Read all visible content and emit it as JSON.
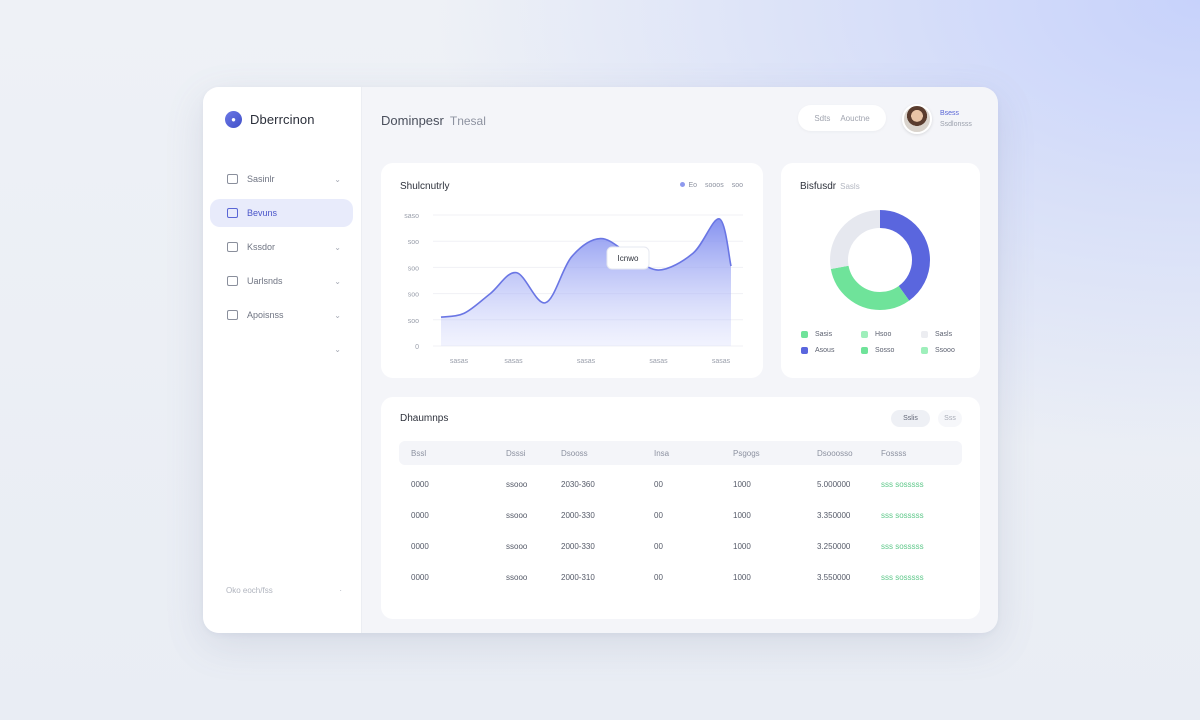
{
  "app": {
    "brand": "Dberrcinon"
  },
  "sidebar": {
    "items": [
      {
        "label": "Sasinlr",
        "icon": "chart-icon"
      },
      {
        "label": "Bevuns",
        "icon": "doc-icon"
      },
      {
        "label": "Kssdor",
        "icon": "file-icon"
      },
      {
        "label": "Uarlsnds",
        "icon": "folder-icon"
      },
      {
        "label": "Apoisnss",
        "icon": "settings-icon"
      }
    ],
    "footer": {
      "left": "Oko eoch/fss",
      "right": "·"
    }
  },
  "header": {
    "title": "Dominpesr",
    "subtitle": "Tnesal",
    "search_label": "Sdts",
    "search_hint": "Aouctne"
  },
  "user": {
    "name": "Bsess",
    "role": "Ssdlonsss"
  },
  "line_card": {
    "title": "Shulcnutrly",
    "legend": [
      "Eo",
      "sooos",
      "soo"
    ],
    "tooltip": "Icnwo"
  },
  "chart_data": {
    "type": "area",
    "x": [
      0,
      0.25,
      0.5,
      0.75,
      1
    ],
    "x_tick_labels": [
      "sasas",
      "sasas",
      "sasas",
      "sasas",
      "sasas"
    ],
    "y_tick_labels": [
      "saso",
      "soo",
      "soo",
      "soo",
      "soo",
      "0"
    ],
    "ylim": [
      0,
      100
    ],
    "series": [
      {
        "points_x": [
          0,
          0.08,
          0.17,
          0.26,
          0.36,
          0.45,
          0.55,
          0.65,
          0.75,
          0.87,
          0.96,
          1
        ],
        "points_y": [
          22,
          25,
          40,
          56,
          33,
          68,
          82,
          70,
          58,
          71,
          97,
          61
        ]
      }
    ],
    "color": "#8e99ee"
  },
  "donut_card": {
    "title": "Bisfusdr",
    "subtitle": "Sasls",
    "segments": [
      {
        "value": 40,
        "color": "#5a66de"
      },
      {
        "value": 32,
        "color": "#6fe39a"
      },
      {
        "value": 28,
        "color": "#e6e8ef"
      }
    ],
    "legend": [
      {
        "label": "Sasis",
        "color": "#6fe39a"
      },
      {
        "label": "Hsoo",
        "color": "#9eefbb"
      },
      {
        "label": "Sasls",
        "color": "#ecedf1"
      },
      {
        "label": "Asous",
        "color": "#5a66de"
      },
      {
        "label": "Sosso",
        "color": "#6fe39a"
      },
      {
        "label": "Ssooo",
        "color": "#9eefbb"
      }
    ]
  },
  "table": {
    "title": "Dhaumnps",
    "btn_primary": "Sslis",
    "btn_secondary": "Sss",
    "headers": [
      "Bssl",
      "Dsssi",
      "Dsooss",
      "Insa",
      "Psgogs",
      "Dsooosso",
      "Fossss"
    ],
    "rows": [
      [
        "0000",
        "ssooo",
        "2030-360",
        "00",
        "1000",
        "5.000000",
        "sss sosssss"
      ],
      [
        "0000",
        "ssooo",
        "2000-330",
        "00",
        "1000",
        "3.350000",
        "sss sosssss"
      ],
      [
        "0000",
        "ssooo",
        "2000-330",
        "00",
        "1000",
        "3.250000",
        "sss sosssss"
      ],
      [
        "0000",
        "ssooo",
        "2000-310",
        "00",
        "1000",
        "3.550000",
        "sss sosssss"
      ]
    ]
  }
}
